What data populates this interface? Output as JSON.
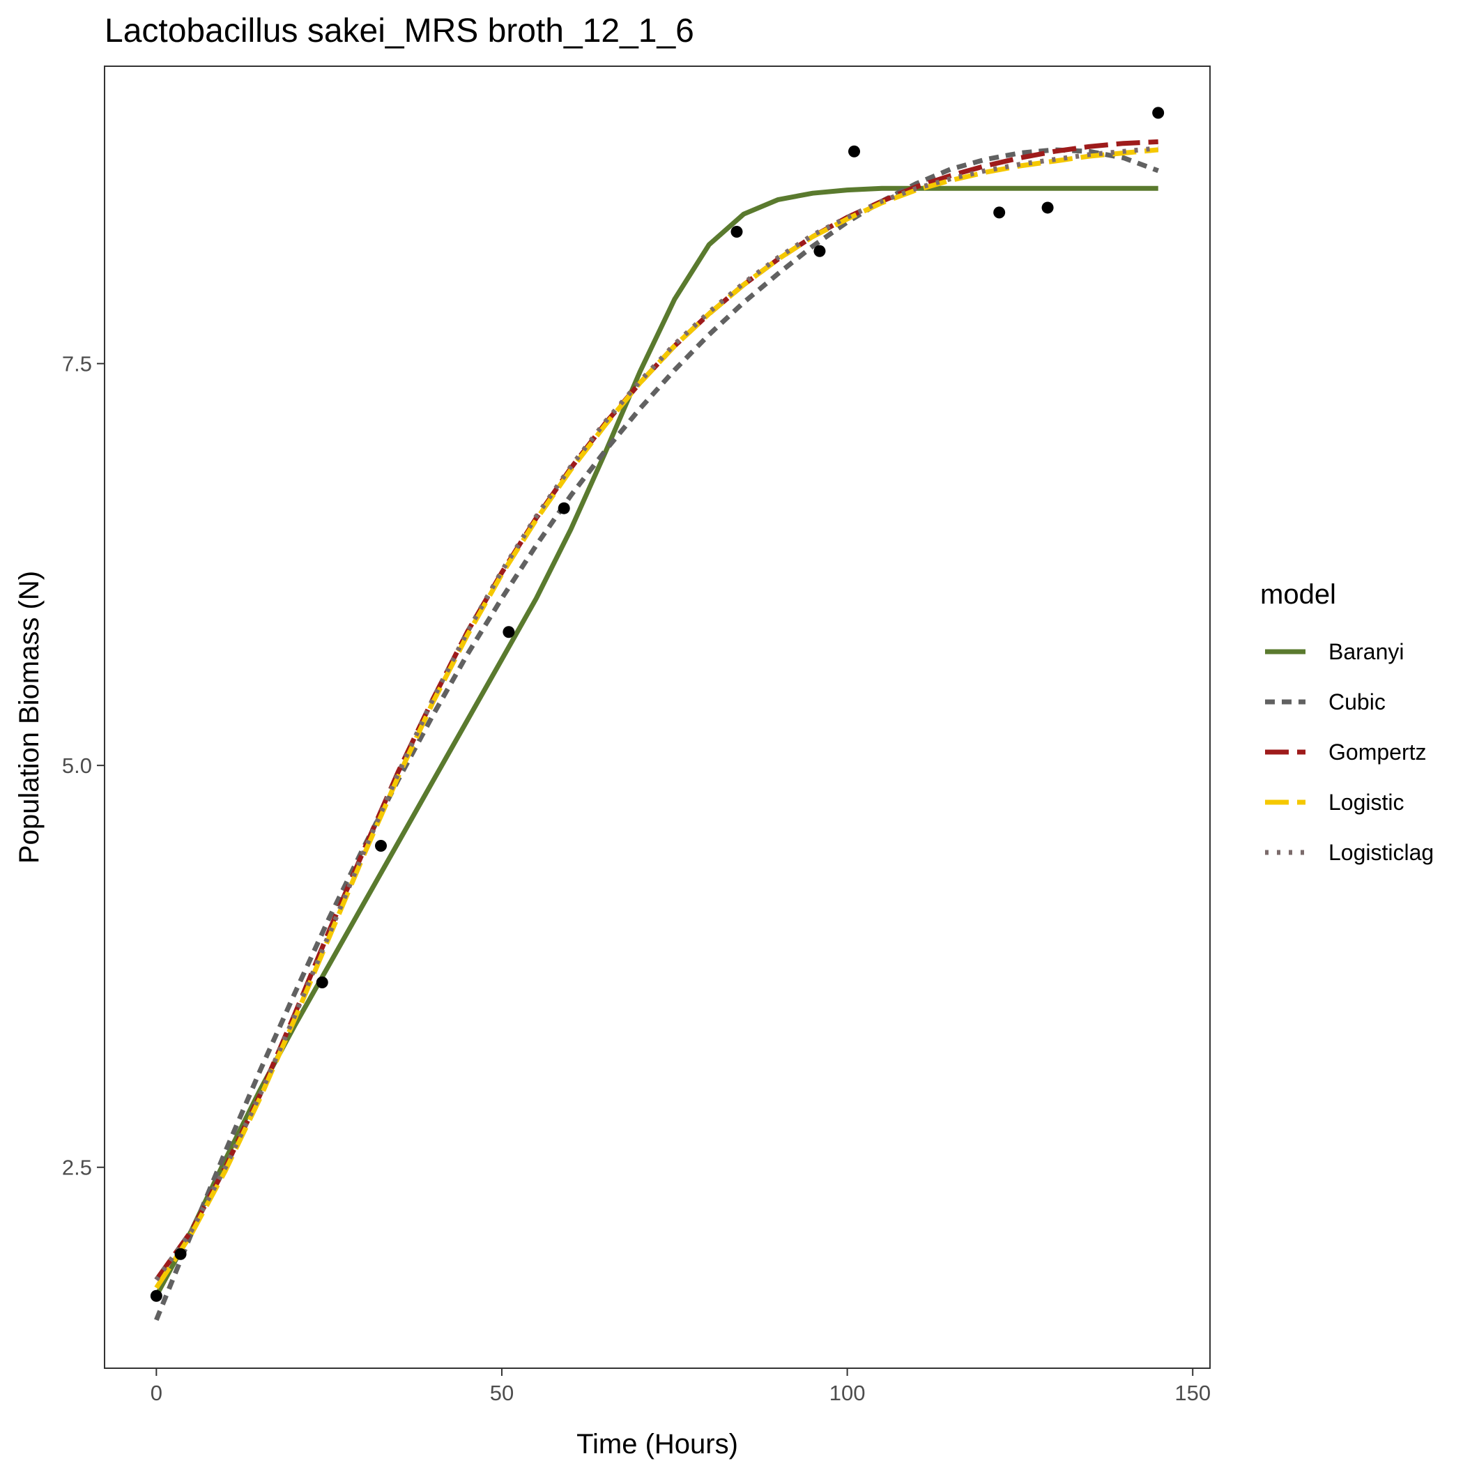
{
  "chart_data": {
    "type": "line",
    "title": "Lactobacillus sakei_MRS broth_12_1_6",
    "xlabel": "Time (Hours)",
    "ylabel": "Population Biomass (N)",
    "xlim": [
      -7.5,
      152.5
    ],
    "ylim": [
      1.25,
      9.35
    ],
    "x_ticks": [
      0,
      50,
      100,
      150
    ],
    "x_tick_labels": [
      "0",
      "50",
      "100",
      "150"
    ],
    "y_ticks": [
      2.5,
      5.0,
      7.5
    ],
    "y_tick_labels": [
      "2.5",
      "5.0",
      "7.5"
    ],
    "grid": false,
    "legend": {
      "title": "model",
      "placement": "right"
    },
    "points": {
      "x": [
        0,
        3.5,
        24,
        32.5,
        51,
        59,
        84,
        96,
        101,
        122,
        129,
        145
      ],
      "y": [
        1.7,
        1.96,
        3.65,
        4.5,
        5.83,
        6.6,
        8.32,
        8.2,
        8.82,
        8.44,
        8.47,
        9.06
      ]
    },
    "series": [
      {
        "name": "Baranyi",
        "color": "#5a7a2e",
        "dash": "solid",
        "x": [
          0,
          5,
          10,
          15,
          20,
          25,
          30,
          35,
          40,
          45,
          50,
          55,
          60,
          65,
          70,
          75,
          80,
          85,
          90,
          95,
          100,
          105,
          110,
          115,
          120,
          130,
          145
        ],
        "y": [
          1.7,
          2.1,
          2.55,
          2.98,
          3.38,
          3.76,
          4.14,
          4.52,
          4.9,
          5.28,
          5.66,
          6.04,
          6.47,
          6.95,
          7.45,
          7.9,
          8.24,
          8.43,
          8.52,
          8.56,
          8.58,
          8.59,
          8.59,
          8.59,
          8.59,
          8.59,
          8.59
        ]
      },
      {
        "name": "Cubic",
        "color": "#616161",
        "dash": "dashed",
        "x": [
          0,
          5,
          10,
          15,
          20,
          25,
          30,
          35,
          40,
          45,
          50,
          55,
          60,
          65,
          70,
          75,
          80,
          85,
          90,
          95,
          100,
          105,
          110,
          115,
          120,
          125,
          130,
          135,
          140,
          145
        ],
        "y": [
          1.55,
          2.08,
          2.6,
          3.1,
          3.58,
          4.05,
          4.49,
          4.91,
          5.31,
          5.69,
          6.04,
          6.37,
          6.68,
          6.96,
          7.22,
          7.46,
          7.68,
          7.88,
          8.06,
          8.23,
          8.38,
          8.51,
          8.62,
          8.71,
          8.77,
          8.81,
          8.83,
          8.82,
          8.78,
          8.7
        ]
      },
      {
        "name": "Gompertz",
        "color": "#9e1b1b",
        "dash": "longdash",
        "x": [
          0,
          5,
          10,
          15,
          20,
          25,
          30,
          35,
          40,
          45,
          50,
          55,
          60,
          65,
          70,
          75,
          80,
          85,
          90,
          95,
          100,
          105,
          110,
          115,
          120,
          125,
          130,
          135,
          140,
          145
        ],
        "y": [
          1.8,
          2.1,
          2.5,
          2.95,
          3.45,
          3.97,
          4.47,
          4.96,
          5.41,
          5.83,
          6.2,
          6.54,
          6.85,
          7.13,
          7.38,
          7.61,
          7.81,
          7.99,
          8.15,
          8.29,
          8.41,
          8.51,
          8.6,
          8.67,
          8.73,
          8.78,
          8.82,
          8.85,
          8.87,
          8.88
        ]
      },
      {
        "name": "Logistic",
        "color": "#f5c800",
        "dash": "longdash",
        "x": [
          0,
          5,
          10,
          15,
          20,
          25,
          30,
          35,
          40,
          45,
          50,
          55,
          60,
          65,
          70,
          75,
          80,
          85,
          90,
          95,
          100,
          105,
          110,
          115,
          120,
          125,
          130,
          135,
          140,
          145
        ],
        "y": [
          1.75,
          2.08,
          2.48,
          2.93,
          3.42,
          3.93,
          4.44,
          4.93,
          5.39,
          5.81,
          6.19,
          6.53,
          6.84,
          7.12,
          7.38,
          7.61,
          7.81,
          7.99,
          8.15,
          8.29,
          8.4,
          8.5,
          8.58,
          8.64,
          8.69,
          8.73,
          8.76,
          8.79,
          8.81,
          8.83
        ]
      },
      {
        "name": "Logisticlag",
        "color": "#7b6b6b",
        "dash": "dotted",
        "x": [
          0,
          5,
          10,
          15,
          20,
          25,
          30,
          35,
          40,
          45,
          50,
          55,
          60,
          65,
          70,
          75,
          80,
          85,
          90,
          95,
          100,
          105,
          110,
          115,
          120,
          125,
          130,
          135,
          140,
          145
        ],
        "y": [
          1.8,
          2.1,
          2.5,
          2.95,
          3.44,
          3.95,
          4.46,
          4.95,
          5.41,
          5.83,
          6.21,
          6.55,
          6.86,
          7.14,
          7.39,
          7.62,
          7.82,
          8.0,
          8.16,
          8.3,
          8.41,
          8.51,
          8.59,
          8.65,
          8.7,
          8.74,
          8.77,
          8.8,
          8.82,
          8.84
        ]
      }
    ]
  }
}
